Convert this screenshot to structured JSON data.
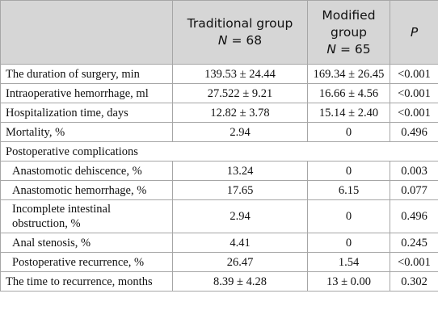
{
  "table": {
    "header": [
      {
        "label": "Traditional group",
        "n_symbol": "N",
        "n_rest": "= 68"
      },
      {
        "label": "Modified group",
        "n_symbol": "N",
        "n_rest": "= 65"
      },
      {
        "label": "P"
      }
    ],
    "rows": [
      {
        "cells": [
          "The duration of surgery, min",
          "139.53 ± 24.44",
          "169.34 ± 26.45",
          "<0.001"
        ]
      },
      {
        "cells": [
          "Intraoperative hemorrhage, ml",
          "27.522 ± 9.21",
          "16.66 ± 4.56",
          "<0.001"
        ]
      },
      {
        "cells": [
          "Hospitalization time, days",
          "12.82 ± 3.78",
          "15.14 ± 2.40",
          "<0.001"
        ]
      },
      {
        "cells": [
          "Mortality, %",
          "2.94",
          "0",
          "0.496"
        ]
      },
      {
        "cells": [
          "Postoperative complications"
        ],
        "span": true
      },
      {
        "cells": [
          "Anastomotic dehiscence, %",
          "13.24",
          "0",
          "0.003"
        ],
        "indent": true
      },
      {
        "cells": [
          "Anastomotic hemorrhage, %",
          "17.65",
          "6.15",
          "0.077"
        ],
        "indent": true
      },
      {
        "cells": [
          "Incomplete intestinal obstruction, %",
          "2.94",
          "0",
          "0.496"
        ],
        "indent": true
      },
      {
        "cells": [
          "Anal stenosis, %",
          "4.41",
          "0",
          "0.245"
        ],
        "indent": true
      },
      {
        "cells": [
          "Postoperative recurrence, %",
          "26.47",
          "1.54",
          "<0.001"
        ],
        "indent": true
      },
      {
        "cells": [
          "The time to recurrence, months",
          "8.39 ± 4.28",
          "13 ± 0.00",
          "0.302"
        ]
      }
    ]
  }
}
